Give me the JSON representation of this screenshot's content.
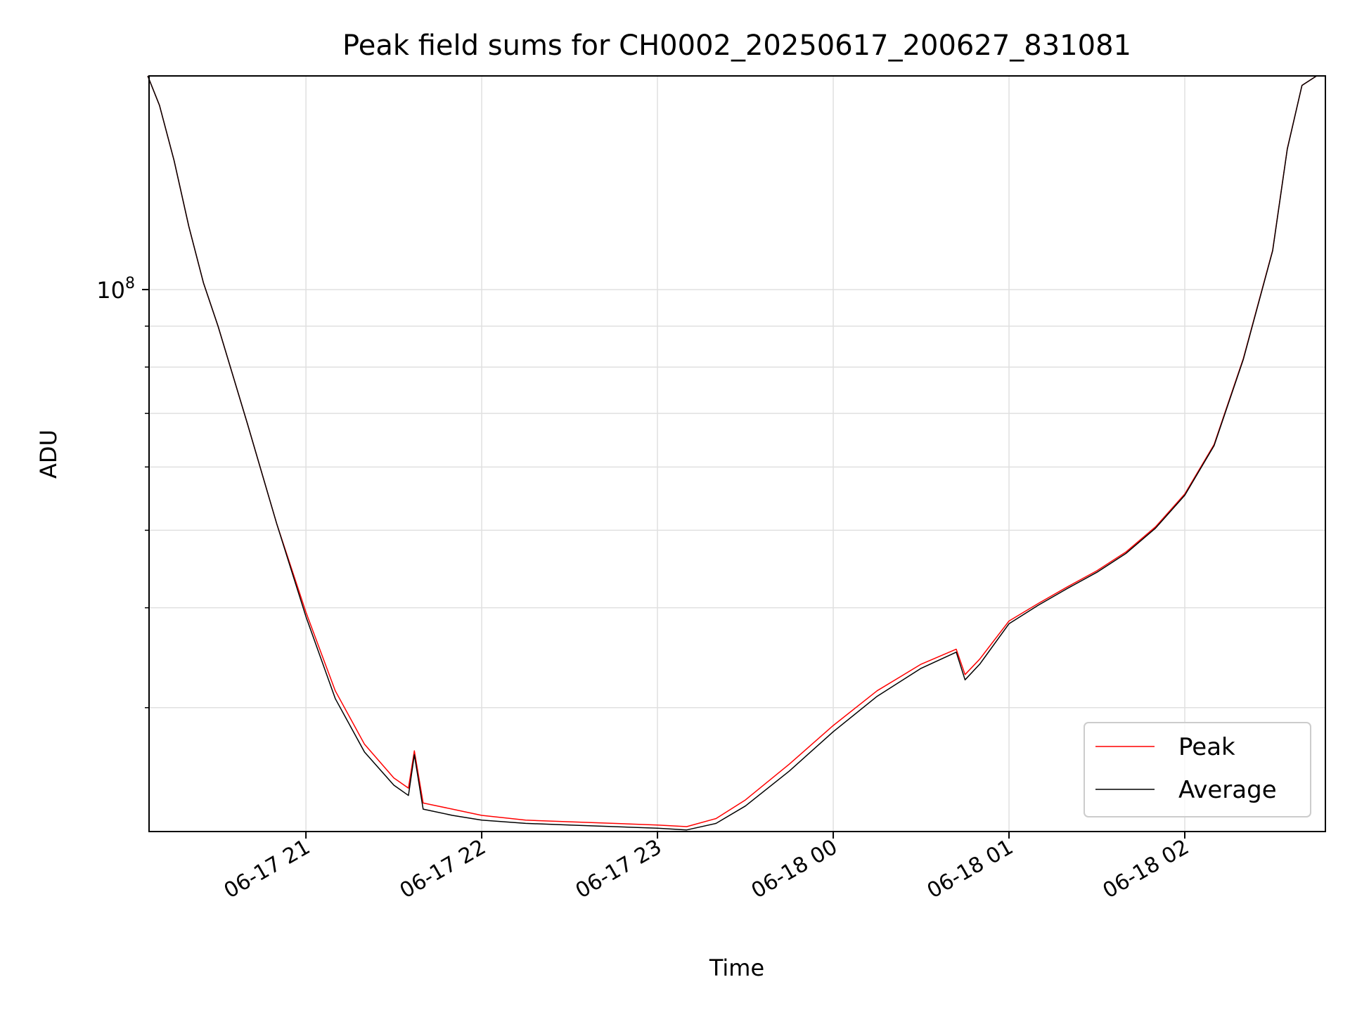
{
  "chart_data": {
    "type": "line",
    "title": "Peak field sums for CH0002_20250617_200627_831081",
    "xlabel": "Time",
    "ylabel": "ADU",
    "yscale": "log",
    "ylim": [
      21000000,
      185000000
    ],
    "xlim": [
      "2025-06-17 20:06:27",
      "2025-06-18 02:48:00"
    ],
    "x_tick_labels": [
      "06-17 21",
      "06-17 22",
      "06-17 23",
      "06-18 00",
      "06-18 01",
      "06-18 02"
    ],
    "x_ticks": [
      "2025-06-17 21:00",
      "2025-06-17 22:00",
      "2025-06-17 23:00",
      "2025-06-18 00:00",
      "2025-06-18 01:00",
      "2025-06-18 02:00"
    ],
    "y_major_tick": {
      "value": 100000000,
      "base": "10",
      "exp": "8"
    },
    "y_minor_ticks": [
      30000000,
      40000000,
      50000000,
      60000000,
      70000000,
      80000000,
      90000000
    ],
    "grid": true,
    "legend": {
      "position": "lower-right",
      "entries": [
        "Peak",
        "Average"
      ]
    },
    "colors": {
      "Peak": "#ff0000",
      "Average": "#000000",
      "grid": "#e0e0e0"
    },
    "series": [
      {
        "name": "Peak",
        "color": "#ff0000",
        "x": [
          "2025-06-17 20:06",
          "2025-06-17 20:10",
          "2025-06-17 20:15",
          "2025-06-17 20:20",
          "2025-06-17 20:25",
          "2025-06-17 20:30",
          "2025-06-17 20:40",
          "2025-06-17 20:50",
          "2025-06-17 21:00",
          "2025-06-17 21:10",
          "2025-06-17 21:20",
          "2025-06-17 21:30",
          "2025-06-17 21:35",
          "2025-06-17 21:37",
          "2025-06-17 21:40",
          "2025-06-17 21:50",
          "2025-06-17 22:00",
          "2025-06-17 22:15",
          "2025-06-17 22:30",
          "2025-06-17 22:45",
          "2025-06-17 23:00",
          "2025-06-17 23:10",
          "2025-06-17 23:20",
          "2025-06-17 23:30",
          "2025-06-17 23:45",
          "2025-06-18 00:00",
          "2025-06-18 00:15",
          "2025-06-18 00:30",
          "2025-06-18 00:42",
          "2025-06-18 00:45",
          "2025-06-18 00:50",
          "2025-06-18 01:00",
          "2025-06-18 01:10",
          "2025-06-18 01:20",
          "2025-06-18 01:30",
          "2025-06-18 01:40",
          "2025-06-18 01:50",
          "2025-06-18 02:00",
          "2025-06-18 02:10",
          "2025-06-18 02:20",
          "2025-06-18 02:30",
          "2025-06-18 02:35",
          "2025-06-18 02:40",
          "2025-06-18 02:45"
        ],
        "values": [
          185000000,
          170000000,
          145000000,
          120000000,
          102000000,
          90000000,
          68000000,
          51000000,
          39500000,
          31500000,
          27000000,
          24500000,
          23800000,
          26500000,
          22800000,
          22400000,
          22000000,
          21700000,
          21600000,
          21500000,
          21400000,
          21300000,
          21800000,
          23000000,
          25500000,
          28500000,
          31500000,
          34000000,
          35500000,
          33000000,
          34500000,
          38500000,
          40500000,
          42500000,
          44500000,
          47000000,
          50500000,
          55500000,
          64000000,
          82000000,
          112000000,
          150000000,
          180000000,
          185000000
        ]
      },
      {
        "name": "Average",
        "color": "#000000",
        "x": [
          "2025-06-17 20:06",
          "2025-06-17 20:10",
          "2025-06-17 20:15",
          "2025-06-17 20:20",
          "2025-06-17 20:25",
          "2025-06-17 20:30",
          "2025-06-17 20:40",
          "2025-06-17 20:50",
          "2025-06-17 21:00",
          "2025-06-17 21:10",
          "2025-06-17 21:20",
          "2025-06-17 21:30",
          "2025-06-17 21:35",
          "2025-06-17 21:37",
          "2025-06-17 21:40",
          "2025-06-17 21:50",
          "2025-06-17 22:00",
          "2025-06-17 22:15",
          "2025-06-17 22:30",
          "2025-06-17 22:45",
          "2025-06-17 23:00",
          "2025-06-17 23:10",
          "2025-06-17 23:20",
          "2025-06-17 23:30",
          "2025-06-17 23:45",
          "2025-06-18 00:00",
          "2025-06-18 00:15",
          "2025-06-18 00:30",
          "2025-06-18 00:42",
          "2025-06-18 00:45",
          "2025-06-18 00:50",
          "2025-06-18 01:00",
          "2025-06-18 01:10",
          "2025-06-18 01:20",
          "2025-06-18 01:30",
          "2025-06-18 01:40",
          "2025-06-18 01:50",
          "2025-06-18 02:00",
          "2025-06-18 02:10",
          "2025-06-18 02:20",
          "2025-06-18 02:30",
          "2025-06-18 02:35",
          "2025-06-18 02:40",
          "2025-06-18 02:45"
        ],
        "values": [
          185000000,
          170000000,
          145000000,
          120000000,
          102000000,
          90000000,
          68000000,
          51000000,
          39000000,
          30800000,
          26400000,
          24000000,
          23300000,
          26200000,
          22400000,
          22000000,
          21700000,
          21500000,
          21400000,
          21300000,
          21200000,
          21100000,
          21500000,
          22600000,
          25000000,
          28000000,
          31000000,
          33600000,
          35200000,
          32500000,
          34000000,
          38200000,
          40300000,
          42300000,
          44300000,
          46800000,
          50300000,
          55300000,
          63800000,
          81800000,
          111800000,
          149800000,
          180000000,
          185000000
        ]
      }
    ]
  }
}
